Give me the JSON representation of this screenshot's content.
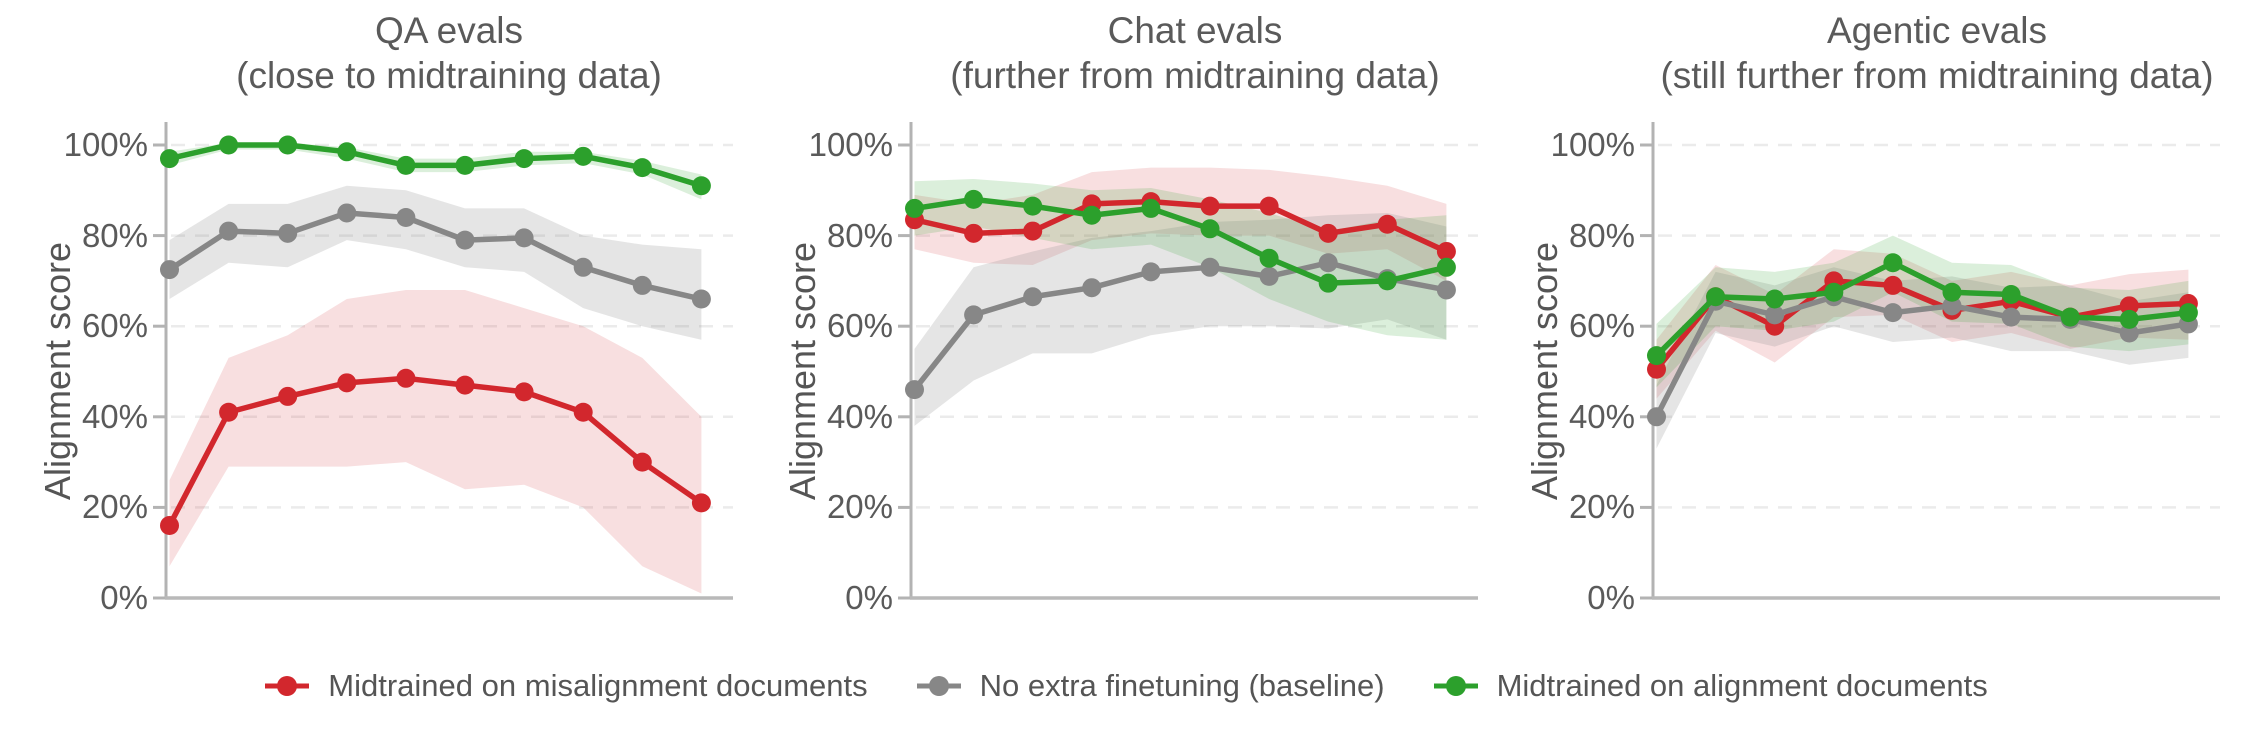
{
  "figure": {
    "ylabel": "Alignment score",
    "background": "#ffffff",
    "text_color": "#5a5a5a",
    "axis_color": "#b3b3b3",
    "grid_color": "#ebebeb",
    "legend": {
      "position": "bottom center",
      "items": [
        {
          "label": "Midtrained on misalignment documents",
          "color": "#d2272d"
        },
        {
          "label": "No extra finetuning (baseline)",
          "color": "#878787"
        },
        {
          "label": "Midtrained on alignment documents",
          "color": "#2ca02c"
        }
      ]
    }
  },
  "chart_data": [
    {
      "type": "line",
      "title": "QA evals",
      "subtitle": "(close to midtraining data)",
      "ylabel": "Alignment score",
      "ylim": [
        0,
        100
      ],
      "ytick_labels": [
        "0%",
        "20%",
        "40%",
        "60%",
        "80%",
        "100%"
      ],
      "x_axis_note": "10 evenly spaced checkpoints, no x tick labels shown",
      "grid": "horizontal dashed lines at 20% steps",
      "series": [
        {
          "name": "Midtrained on misalignment documents",
          "color": "#d2272d",
          "band_opacity": 0.15,
          "values": [
            16,
            41,
            44.5,
            47.5,
            48.5,
            47,
            45.5,
            41,
            30,
            21
          ],
          "band_low": [
            7,
            29,
            29,
            29,
            30,
            24,
            25,
            20,
            7,
            1
          ],
          "band_high": [
            26,
            53,
            58,
            66,
            68,
            68,
            64,
            60,
            53,
            40
          ]
        },
        {
          "name": "No extra finetuning (baseline)",
          "color": "#878787",
          "band_opacity": 0.22,
          "values": [
            72.5,
            81,
            80.5,
            85,
            84,
            79,
            79.5,
            73,
            69,
            66
          ],
          "band_low": [
            66,
            74,
            73,
            79,
            77,
            73,
            72,
            64,
            60,
            57
          ],
          "band_high": [
            79,
            87,
            87,
            91,
            90,
            86,
            86,
            80,
            78,
            77
          ]
        },
        {
          "name": "Midtrained on alignment documents",
          "color": "#2ca02c",
          "band_opacity": 0.17,
          "values": [
            97,
            100,
            100,
            98.5,
            95.5,
            95.5,
            97,
            97.5,
            95,
            91
          ],
          "band_low": [
            95.5,
            99,
            99,
            97,
            94,
            94,
            95.5,
            96,
            93.5,
            88
          ],
          "band_high": [
            98.5,
            100.5,
            100.5,
            99.5,
            97,
            97,
            98.5,
            98.5,
            96.5,
            93.5
          ]
        }
      ]
    },
    {
      "type": "line",
      "title": "Chat evals",
      "subtitle": "(further from midtraining data)",
      "ylabel": "Alignment score",
      "ylim": [
        0,
        100
      ],
      "ytick_labels": [
        "0%",
        "20%",
        "40%",
        "60%",
        "80%",
        "100%"
      ],
      "x_axis_note": "10 evenly spaced checkpoints, no x tick labels shown",
      "grid": "horizontal dashed lines at 20% steps",
      "series": [
        {
          "name": "Midtrained on misalignment documents",
          "color": "#d2272d",
          "band_opacity": 0.15,
          "values": [
            83.5,
            80.5,
            81,
            87,
            87.5,
            86.5,
            86.5,
            80.5,
            82.5,
            76.5
          ],
          "band_low": [
            77,
            74,
            73.5,
            79,
            80.5,
            80,
            80,
            76,
            77,
            70
          ],
          "band_high": [
            89,
            87,
            89,
            94,
            95,
            95,
            94.5,
            93,
            91,
            87
          ]
        },
        {
          "name": "No extra finetuning (baseline)",
          "color": "#878787",
          "band_opacity": 0.22,
          "values": [
            46,
            62.5,
            66.5,
            68.5,
            72,
            73,
            71,
            74,
            70.5,
            68
          ],
          "band_low": [
            38,
            48,
            54,
            54,
            58,
            60,
            60,
            59.5,
            61.5,
            57
          ],
          "band_high": [
            55,
            73,
            76.5,
            79.5,
            81,
            83,
            83.5,
            84.5,
            85,
            82
          ]
        },
        {
          "name": "Midtrained on alignment documents",
          "color": "#2ca02c",
          "band_opacity": 0.17,
          "values": [
            86,
            88,
            86.5,
            84.5,
            86,
            81.5,
            75,
            69.5,
            70,
            73
          ],
          "band_low": [
            80,
            82,
            79.5,
            77,
            78,
            73,
            66,
            61,
            58,
            57
          ],
          "band_high": [
            92,
            92.5,
            91.5,
            90,
            90.5,
            88,
            85,
            81,
            83.5,
            84.5
          ]
        }
      ]
    },
    {
      "type": "line",
      "title": "Agentic evals",
      "subtitle": "(still further from midtraining data)",
      "ylabel": "Alignment score",
      "ylim": [
        0,
        100
      ],
      "ytick_labels": [
        "0%",
        "20%",
        "40%",
        "60%",
        "80%",
        "100%"
      ],
      "x_axis_note": "10 evenly spaced checkpoints, no x tick labels shown",
      "grid": "horizontal dashed lines at 20% steps",
      "series": [
        {
          "name": "Midtrained on misalignment documents",
          "color": "#d2272d",
          "band_opacity": 0.15,
          "values": [
            50.5,
            66.5,
            60,
            70,
            69,
            63.5,
            65.5,
            62,
            64.5,
            65
          ],
          "band_low": [
            44,
            59,
            52,
            62,
            62.5,
            56.5,
            58.5,
            55,
            57.5,
            57
          ],
          "band_high": [
            57,
            73.5,
            67,
            77,
            76,
            70,
            72,
            69,
            71.5,
            72.5
          ]
        },
        {
          "name": "No extra finetuning (baseline)",
          "color": "#878787",
          "band_opacity": 0.22,
          "values": [
            40,
            65.5,
            62.5,
            66.5,
            63,
            64.5,
            62,
            61.5,
            58.5,
            60.5
          ],
          "band_low": [
            33,
            58.5,
            55.5,
            60,
            56.5,
            57.5,
            54.5,
            54.5,
            51.5,
            53
          ],
          "band_high": [
            47,
            72,
            69,
            73,
            70,
            71,
            68.5,
            69,
            65.5,
            67.5
          ]
        },
        {
          "name": "Midtrained on alignment documents",
          "color": "#2ca02c",
          "band_opacity": 0.17,
          "values": [
            53.5,
            66.5,
            66,
            67.5,
            74,
            67.5,
            67,
            62,
            61.5,
            63
          ],
          "band_low": [
            46.5,
            60,
            59,
            61,
            67.5,
            61,
            60.5,
            55.5,
            54.5,
            56
          ],
          "band_high": [
            60.5,
            73,
            72,
            74,
            80,
            74,
            73.5,
            68.5,
            68,
            70
          ]
        }
      ]
    }
  ]
}
